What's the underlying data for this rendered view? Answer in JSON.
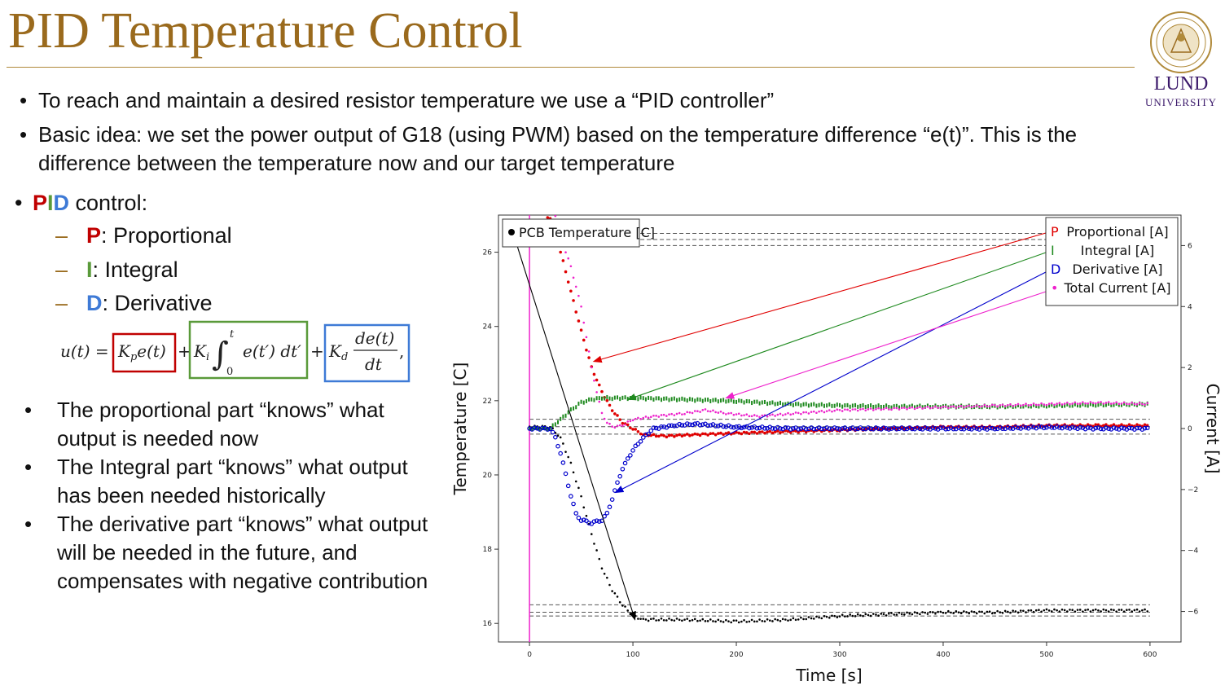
{
  "slide": {
    "title": "PID Temperature Control",
    "bullets_top": [
      "To reach and maintain a desired resistor temperature we use a “PID controller”",
      "Basic idea: we set the power output of G18 (using PWM) based on the temperature difference “e(t)”. This is the difference between the temperature now and our target temperature"
    ],
    "pid": {
      "p": "P",
      "i": "I",
      "d": "D",
      "suffix": " control:",
      "items": [
        {
          "letter": "P",
          "text": ": Proportional"
        },
        {
          "letter": "I",
          "text": ": Integral"
        },
        {
          "letter": "D",
          "text": ": Derivative"
        }
      ]
    },
    "bullets_bottom": [
      "The proportional part “knows” what output is needed now",
      "The Integral part “knows” what output has been needed historically",
      "The derivative part “knows” what output will be needed in the future, and compensates with negative contribution"
    ],
    "logo": {
      "name": "LUND",
      "sub": "UNIVERSITY"
    }
  },
  "colors": {
    "title": "#9a6a1d",
    "p": "#c00000",
    "i": "#5a9a3a",
    "d": "#3e7ad6"
  },
  "chart_data": {
    "type": "scatter",
    "xlabel": "Time [s]",
    "ylabel": "Temperature [C]",
    "y2label": "Current [A]",
    "xlim": [
      -30,
      630
    ],
    "ylim": [
      15.5,
      27.0
    ],
    "y2lim": [
      -7.0,
      7.0
    ],
    "xticks": [
      0,
      100,
      200,
      300,
      400,
      500,
      600
    ],
    "yticks": [
      16,
      18,
      20,
      22,
      24,
      26
    ],
    "y2ticks": [
      -6,
      -4,
      -2,
      0,
      2,
      4,
      6
    ],
    "legend_left": "PCB Temperature [C]",
    "legend_right": [
      {
        "marker": "P",
        "label": "Proportional [A]",
        "color": "#e00000"
      },
      {
        "marker": "I",
        "label": "Integral [A]",
        "color": "#1f8a1f"
      },
      {
        "marker": "D",
        "label": "Derivative [A]",
        "color": "#0000cc"
      },
      {
        "marker": "•",
        "label": "Total Current [A]",
        "color": "#ee22cc"
      }
    ],
    "series": [
      {
        "name": "PCB Temperature [C]",
        "axis": "left",
        "color": "#000000",
        "x": [
          0,
          20,
          30,
          40,
          50,
          60,
          70,
          80,
          90,
          100,
          110,
          120,
          150,
          200,
          250,
          300,
          350,
          400,
          450,
          500,
          550,
          600
        ],
        "y": [
          21.3,
          21.3,
          21.0,
          20.3,
          19.4,
          18.4,
          17.5,
          16.9,
          16.5,
          16.2,
          16.1,
          16.1,
          16.1,
          16.05,
          16.1,
          16.2,
          16.25,
          16.3,
          16.3,
          16.35,
          16.35,
          16.35
        ]
      },
      {
        "name": "Proportional [A]",
        "axis": "right",
        "color": "#e00000",
        "x": [
          15,
          20,
          25,
          30,
          40,
          50,
          60,
          70,
          80,
          90,
          100,
          110,
          130,
          160,
          200,
          250,
          300,
          350,
          400,
          450,
          500,
          550,
          600
        ],
        "y": [
          7.0,
          6.9,
          6.5,
          5.8,
          4.5,
          3.2,
          2.0,
          1.2,
          0.6,
          0.2,
          0.0,
          -0.2,
          -0.25,
          -0.2,
          -0.15,
          -0.1,
          -0.05,
          0.0,
          0.05,
          0.05,
          0.1,
          0.1,
          0.1
        ]
      },
      {
        "name": "Integral [A]",
        "axis": "right",
        "color": "#1f8a1f",
        "x": [
          0,
          20,
          30,
          40,
          50,
          60,
          70,
          80,
          100,
          150,
          200,
          250,
          300,
          350,
          400,
          450,
          500,
          550,
          600
        ],
        "y": [
          0.0,
          0.0,
          0.3,
          0.6,
          0.85,
          0.95,
          1.0,
          1.0,
          1.0,
          0.95,
          0.9,
          0.8,
          0.75,
          0.72,
          0.72,
          0.72,
          0.75,
          0.78,
          0.8
        ]
      },
      {
        "name": "Derivative [A]",
        "axis": "right",
        "color": "#0000cc",
        "x": [
          0,
          20,
          25,
          30,
          35,
          40,
          45,
          50,
          55,
          60,
          65,
          70,
          75,
          80,
          85,
          90,
          100,
          110,
          120,
          140,
          160,
          200,
          250,
          300,
          350,
          400,
          450,
          500,
          550,
          600
        ],
        "y": [
          0.0,
          0.0,
          -0.3,
          -0.8,
          -1.5,
          -2.2,
          -2.8,
          -3.0,
          -3.05,
          -3.1,
          -3.05,
          -3.0,
          -2.8,
          -2.3,
          -1.8,
          -1.3,
          -0.7,
          -0.3,
          0.0,
          0.1,
          0.15,
          0.05,
          0.0,
          0.0,
          0.0,
          0.0,
          0.0,
          0.05,
          0.0,
          0.0
        ]
      },
      {
        "name": "Total Current [A]",
        "axis": "right",
        "color": "#ee22cc",
        "x": [
          25,
          30,
          40,
          50,
          55,
          60,
          65,
          70,
          75,
          80,
          90,
          100,
          120,
          150,
          170,
          190,
          220,
          260,
          300,
          350,
          400,
          450,
          500,
          550,
          600
        ],
        "y": [
          7.0,
          6.3,
          5.3,
          4.0,
          3.0,
          2.0,
          1.2,
          0.5,
          0.2,
          0.05,
          0.1,
          0.3,
          0.4,
          0.5,
          0.6,
          0.5,
          0.4,
          0.5,
          0.6,
          0.65,
          0.7,
          0.75,
          0.8,
          0.85,
          0.8
        ]
      }
    ]
  }
}
